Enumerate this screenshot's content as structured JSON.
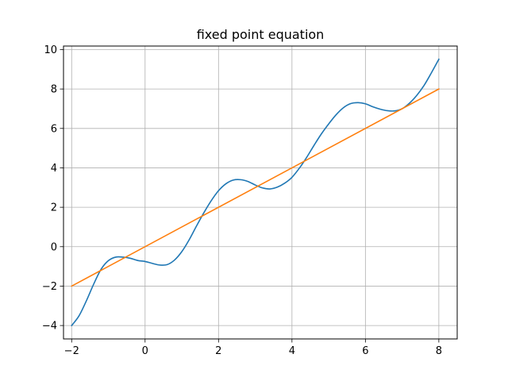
{
  "chart_data": {
    "type": "line",
    "title": "fixed point equation",
    "xlabel": "",
    "ylabel": "",
    "xlim": [
      -2.222,
      8.5
    ],
    "ylim": [
      -4.68,
      10.18
    ],
    "grid": true,
    "legend": "none",
    "xticks": [
      -2,
      0,
      2,
      4,
      6,
      8
    ],
    "xtick_labels": [
      "−2",
      "0",
      "2",
      "4",
      "6",
      "8"
    ],
    "yticks": [
      -4,
      -2,
      0,
      2,
      4,
      6,
      8,
      10
    ],
    "ytick_labels": [
      "−4",
      "−2",
      "0",
      "2",
      "4",
      "6",
      "8",
      "10"
    ],
    "series": [
      {
        "color": "#1f77b4",
        "x": [
          -2.0,
          -1.8,
          -1.6,
          -1.4,
          -1.2,
          -1.0,
          -0.8,
          -0.6,
          -0.4,
          -0.2,
          0.0,
          0.2,
          0.4,
          0.6,
          0.8,
          1.0,
          1.2,
          1.4,
          1.6,
          1.8,
          2.0,
          2.2,
          2.4,
          2.6,
          2.8,
          3.0,
          3.2,
          3.4,
          3.6,
          3.8,
          4.0,
          4.2,
          4.4,
          4.6,
          4.8,
          5.0,
          5.2,
          5.4,
          5.6,
          5.8,
          6.0,
          6.2,
          6.4,
          6.6,
          6.8,
          7.0,
          7.2,
          7.4,
          7.6,
          7.8,
          8.0
        ],
        "y": [
          -4.0,
          -3.51,
          -2.75,
          -1.9,
          -1.15,
          -0.71,
          -0.53,
          -0.53,
          -0.59,
          -0.7,
          -0.75,
          -0.85,
          -0.93,
          -0.91,
          -0.68,
          -0.25,
          0.35,
          1.05,
          1.72,
          2.33,
          2.84,
          3.19,
          3.38,
          3.4,
          3.31,
          3.13,
          2.98,
          2.93,
          3.02,
          3.22,
          3.52,
          3.98,
          4.53,
          5.14,
          5.72,
          6.23,
          6.69,
          7.05,
          7.26,
          7.31,
          7.25,
          7.1,
          6.98,
          6.9,
          6.89,
          7.0,
          7.28,
          7.68,
          8.19,
          8.83,
          9.51
        ]
      },
      {
        "color": "#ff7f0e",
        "x": [
          -2,
          8
        ],
        "y": [
          -2,
          8
        ]
      }
    ]
  }
}
